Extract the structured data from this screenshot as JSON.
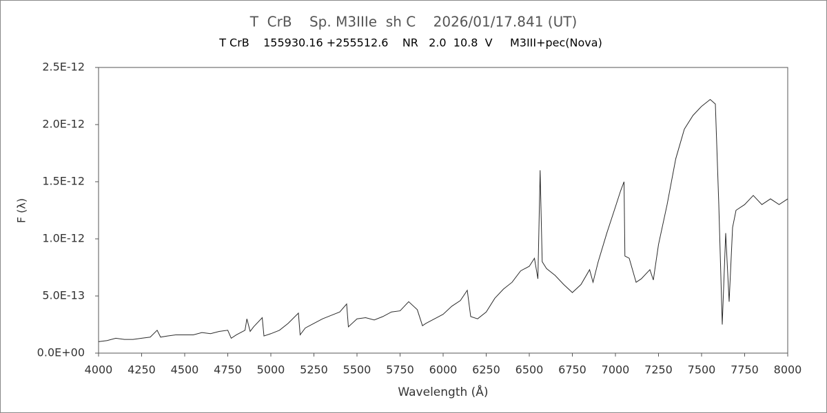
{
  "chart_data": {
    "type": "line",
    "title": "T  CrB    Sp. M3IIIe  sh C    2026/01/17.841 (UT)",
    "subtitle": "T CrB    155930.16 +255512.6    NR   2.0  10.8  V     M3III+pec(Nova)",
    "x_label": "Wavelength (Å)",
    "y_label": "F (λ)",
    "color": "#2a2a2a",
    "x": [
      4000,
      4050,
      4100,
      4150,
      4200,
      4250,
      4300,
      4340,
      4360,
      4400,
      4450,
      4500,
      4550,
      4600,
      4650,
      4700,
      4750,
      4770,
      4800,
      4850,
      4861,
      4880,
      4900,
      4950,
      4960,
      5000,
      5050,
      5100,
      5160,
      5170,
      5200,
      5250,
      5300,
      5350,
      5400,
      5440,
      5450,
      5500,
      5550,
      5600,
      5650,
      5700,
      5750,
      5800,
      5850,
      5880,
      5900,
      5950,
      6000,
      6050,
      6100,
      6140,
      6160,
      6200,
      6250,
      6300,
      6350,
      6400,
      6450,
      6500,
      6530,
      6550,
      6563,
      6575,
      6600,
      6650,
      6700,
      6750,
      6800,
      6850,
      6870,
      6900,
      6950,
      7000,
      7030,
      7050,
      7055,
      7080,
      7120,
      7150,
      7200,
      7220,
      7250,
      7300,
      7350,
      7400,
      7450,
      7500,
      7550,
      7580,
      7600,
      7620,
      7640,
      7660,
      7680,
      7700,
      7750,
      7800,
      7850,
      7900,
      7950,
      8000
    ],
    "values": [
      1e-13,
      1.1e-13,
      1.3e-13,
      1.2e-13,
      1.2e-13,
      1.3e-13,
      1.4e-13,
      2e-13,
      1.4e-13,
      1.5e-13,
      1.6e-13,
      1.6e-13,
      1.6e-13,
      1.8e-13,
      1.7e-13,
      1.9e-13,
      2e-13,
      1.3e-13,
      1.6e-13,
      2e-13,
      3e-13,
      1.9e-13,
      2.3e-13,
      3.1e-13,
      1.5e-13,
      1.7e-13,
      2e-13,
      2.6e-13,
      3.5e-13,
      1.6e-13,
      2.2e-13,
      2.6e-13,
      3e-13,
      3.3e-13,
      3.6e-13,
      4.3e-13,
      2.3e-13,
      3e-13,
      3.1e-13,
      2.9e-13,
      3.2e-13,
      3.6e-13,
      3.7e-13,
      4.5e-13,
      3.8e-13,
      2.4e-13,
      2.6e-13,
      3e-13,
      3.4e-13,
      4.1e-13,
      4.6e-13,
      5.5e-13,
      3.2e-13,
      3e-13,
      3.6e-13,
      4.8e-13,
      5.6e-13,
      6.2e-13,
      7.2e-13,
      7.6e-13,
      8.3e-13,
      6.5e-13,
      1.6e-12,
      8e-13,
      7.4e-13,
      6.8e-13,
      6e-13,
      5.3e-13,
      6e-13,
      7.3e-13,
      6.2e-13,
      8e-13,
      1.05e-12,
      1.28e-12,
      1.42e-12,
      1.5e-12,
      8.5e-13,
      8.3e-13,
      6.2e-13,
      6.5e-13,
      7.3e-13,
      6.4e-13,
      9.5e-13,
      1.3e-12,
      1.7e-12,
      1.96e-12,
      2.08e-12,
      2.16e-12,
      2.22e-12,
      2.18e-12,
      1.3e-12,
      2.5e-13,
      1.05e-12,
      4.5e-13,
      1.1e-12,
      1.25e-12,
      1.3e-12,
      1.38e-12,
      1.3e-12,
      1.35e-12,
      1.3e-12,
      1.35e-12
    ],
    "xlim": [
      4000,
      8000
    ],
    "xticks": [
      4000,
      4250,
      4500,
      4750,
      5000,
      5250,
      5500,
      5750,
      6000,
      6250,
      6500,
      6750,
      7000,
      7250,
      7500,
      7750,
      8000
    ],
    "ylim": [
      0,
      2.5e-12
    ],
    "yticks": [
      {
        "value": 0,
        "label": "0.0E+00"
      },
      {
        "value": 5e-13,
        "label": "5.0E-13"
      },
      {
        "value": 1e-12,
        "label": "1.0E-12"
      },
      {
        "value": 1.5e-12,
        "label": "1.5E-12"
      },
      {
        "value": 2e-12,
        "label": "2.0E-12"
      },
      {
        "value": 2.5e-12,
        "label": "2.5E-12"
      }
    ],
    "grid": false
  }
}
